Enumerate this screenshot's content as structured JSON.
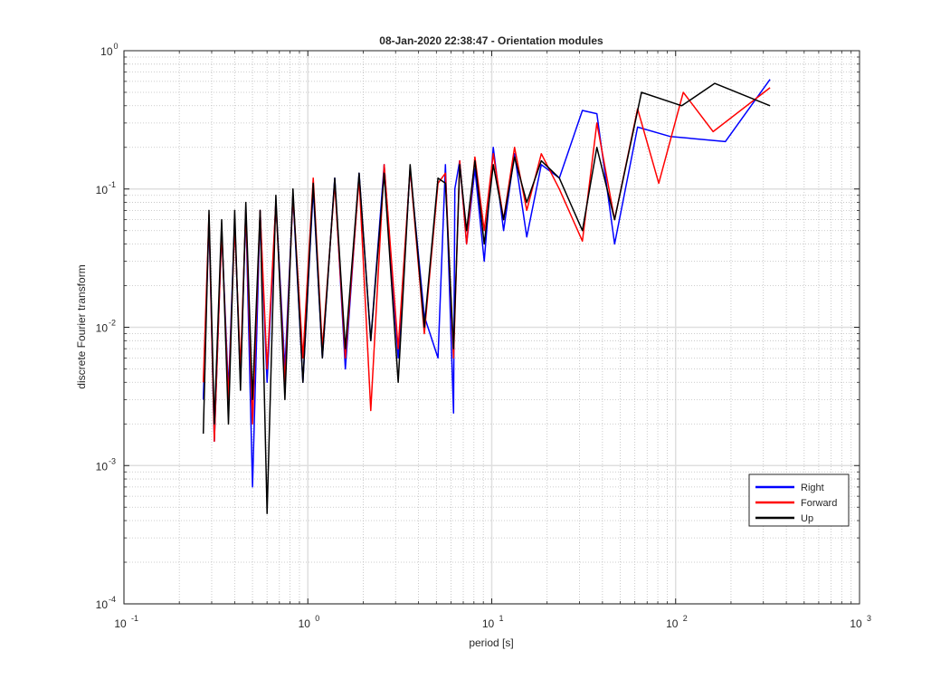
{
  "chart_data": {
    "type": "line",
    "title": "08-Jan-2020 22:38:47 - Orientation modules",
    "xlabel": "period [s]",
    "ylabel": "discrete Fourier transform",
    "xscale": "log",
    "yscale": "log",
    "xlim": [
      0.1,
      1000
    ],
    "ylim": [
      0.0001,
      1
    ],
    "grid": true,
    "minor_grid": true,
    "legend_position": "bottom-right",
    "x_ticks": [
      {
        "base": "10",
        "exp": "-1",
        "value": 0.1
      },
      {
        "base": "10",
        "exp": "0",
        "value": 1
      },
      {
        "base": "10",
        "exp": "1",
        "value": 10
      },
      {
        "base": "10",
        "exp": "2",
        "value": 100
      },
      {
        "base": "10",
        "exp": "3",
        "value": 1000
      }
    ],
    "y_ticks": [
      {
        "base": "10",
        "exp": "-4",
        "value": 0.0001
      },
      {
        "base": "10",
        "exp": "-3",
        "value": 0.001
      },
      {
        "base": "10",
        "exp": "-2",
        "value": 0.01
      },
      {
        "base": "10",
        "exp": "-1",
        "value": 0.1
      },
      {
        "base": "10",
        "exp": "0",
        "value": 1
      }
    ],
    "series": [
      {
        "name": "Right",
        "color": "#0000ff",
        "x": [
          0.27,
          0.29,
          0.31,
          0.34,
          0.37,
          0.4,
          0.43,
          0.46,
          0.5,
          0.55,
          0.6,
          0.67,
          0.75,
          0.83,
          0.94,
          1.07,
          1.2,
          1.4,
          1.6,
          1.9,
          2.2,
          2.6,
          3.1,
          3.6,
          4.3,
          5.1,
          5.6,
          6.2,
          6.3,
          6.7,
          7.3,
          8.1,
          9.1,
          10.2,
          11.6,
          13.3,
          15.5,
          18.6,
          23.3,
          31.1,
          37.3,
          46.6,
          62.1,
          93.2,
          186.4,
          326
        ],
        "y": [
          0.003,
          0.06,
          0.0015,
          0.05,
          0.0035,
          0.06,
          0.004,
          0.07,
          0.0007,
          0.07,
          0.004,
          0.08,
          0.005,
          0.09,
          0.004,
          0.1,
          0.006,
          0.12,
          0.005,
          0.13,
          0.008,
          0.15,
          0.006,
          0.14,
          0.012,
          0.006,
          0.15,
          0.0024,
          0.1,
          0.16,
          0.04,
          0.14,
          0.03,
          0.2,
          0.05,
          0.18,
          0.045,
          0.15,
          0.12,
          0.37,
          0.35,
          0.04,
          0.28,
          0.24,
          0.22,
          0.62
        ]
      },
      {
        "name": "Forward",
        "color": "#ff0000",
        "x": [
          0.27,
          0.29,
          0.31,
          0.34,
          0.37,
          0.4,
          0.43,
          0.46,
          0.5,
          0.55,
          0.6,
          0.67,
          0.75,
          0.83,
          0.94,
          1.07,
          1.2,
          1.4,
          1.6,
          1.9,
          2.2,
          2.6,
          3.1,
          3.6,
          4.3,
          5.1,
          5.6,
          6.2,
          6.7,
          7.3,
          8.1,
          9.1,
          10.2,
          11.6,
          13.3,
          15.5,
          18.6,
          23.3,
          31.1,
          37.3,
          46.6,
          62.1,
          81,
          110,
          160,
          326
        ],
        "y": [
          0.004,
          0.065,
          0.0015,
          0.05,
          0.003,
          0.055,
          0.005,
          0.07,
          0.002,
          0.07,
          0.005,
          0.08,
          0.004,
          0.09,
          0.006,
          0.12,
          0.007,
          0.11,
          0.006,
          0.12,
          0.0025,
          0.15,
          0.007,
          0.14,
          0.009,
          0.11,
          0.13,
          0.006,
          0.16,
          0.04,
          0.17,
          0.05,
          0.18,
          0.06,
          0.2,
          0.07,
          0.18,
          0.1,
          0.042,
          0.3,
          0.06,
          0.38,
          0.11,
          0.5,
          0.26,
          0.54
        ]
      },
      {
        "name": "Up",
        "color": "#000000",
        "x": [
          0.27,
          0.29,
          0.31,
          0.34,
          0.37,
          0.4,
          0.43,
          0.46,
          0.5,
          0.55,
          0.6,
          0.67,
          0.75,
          0.83,
          0.94,
          1.07,
          1.2,
          1.4,
          1.6,
          1.9,
          2.2,
          2.6,
          3.1,
          3.6,
          4.3,
          5.1,
          5.6,
          6.2,
          6.7,
          7.3,
          8.1,
          9.1,
          10.2,
          11.6,
          13.3,
          15.5,
          18.6,
          23.3,
          31.1,
          37.3,
          46.6,
          65.2,
          108,
          163,
          326
        ],
        "y": [
          0.0017,
          0.07,
          0.002,
          0.06,
          0.002,
          0.07,
          0.0035,
          0.08,
          0.003,
          0.07,
          0.00045,
          0.09,
          0.003,
          0.1,
          0.004,
          0.11,
          0.006,
          0.12,
          0.007,
          0.13,
          0.008,
          0.13,
          0.004,
          0.15,
          0.01,
          0.12,
          0.11,
          0.007,
          0.15,
          0.05,
          0.16,
          0.04,
          0.15,
          0.06,
          0.17,
          0.08,
          0.16,
          0.12,
          0.05,
          0.2,
          0.06,
          0.5,
          0.4,
          0.58,
          0.4
        ]
      }
    ]
  }
}
